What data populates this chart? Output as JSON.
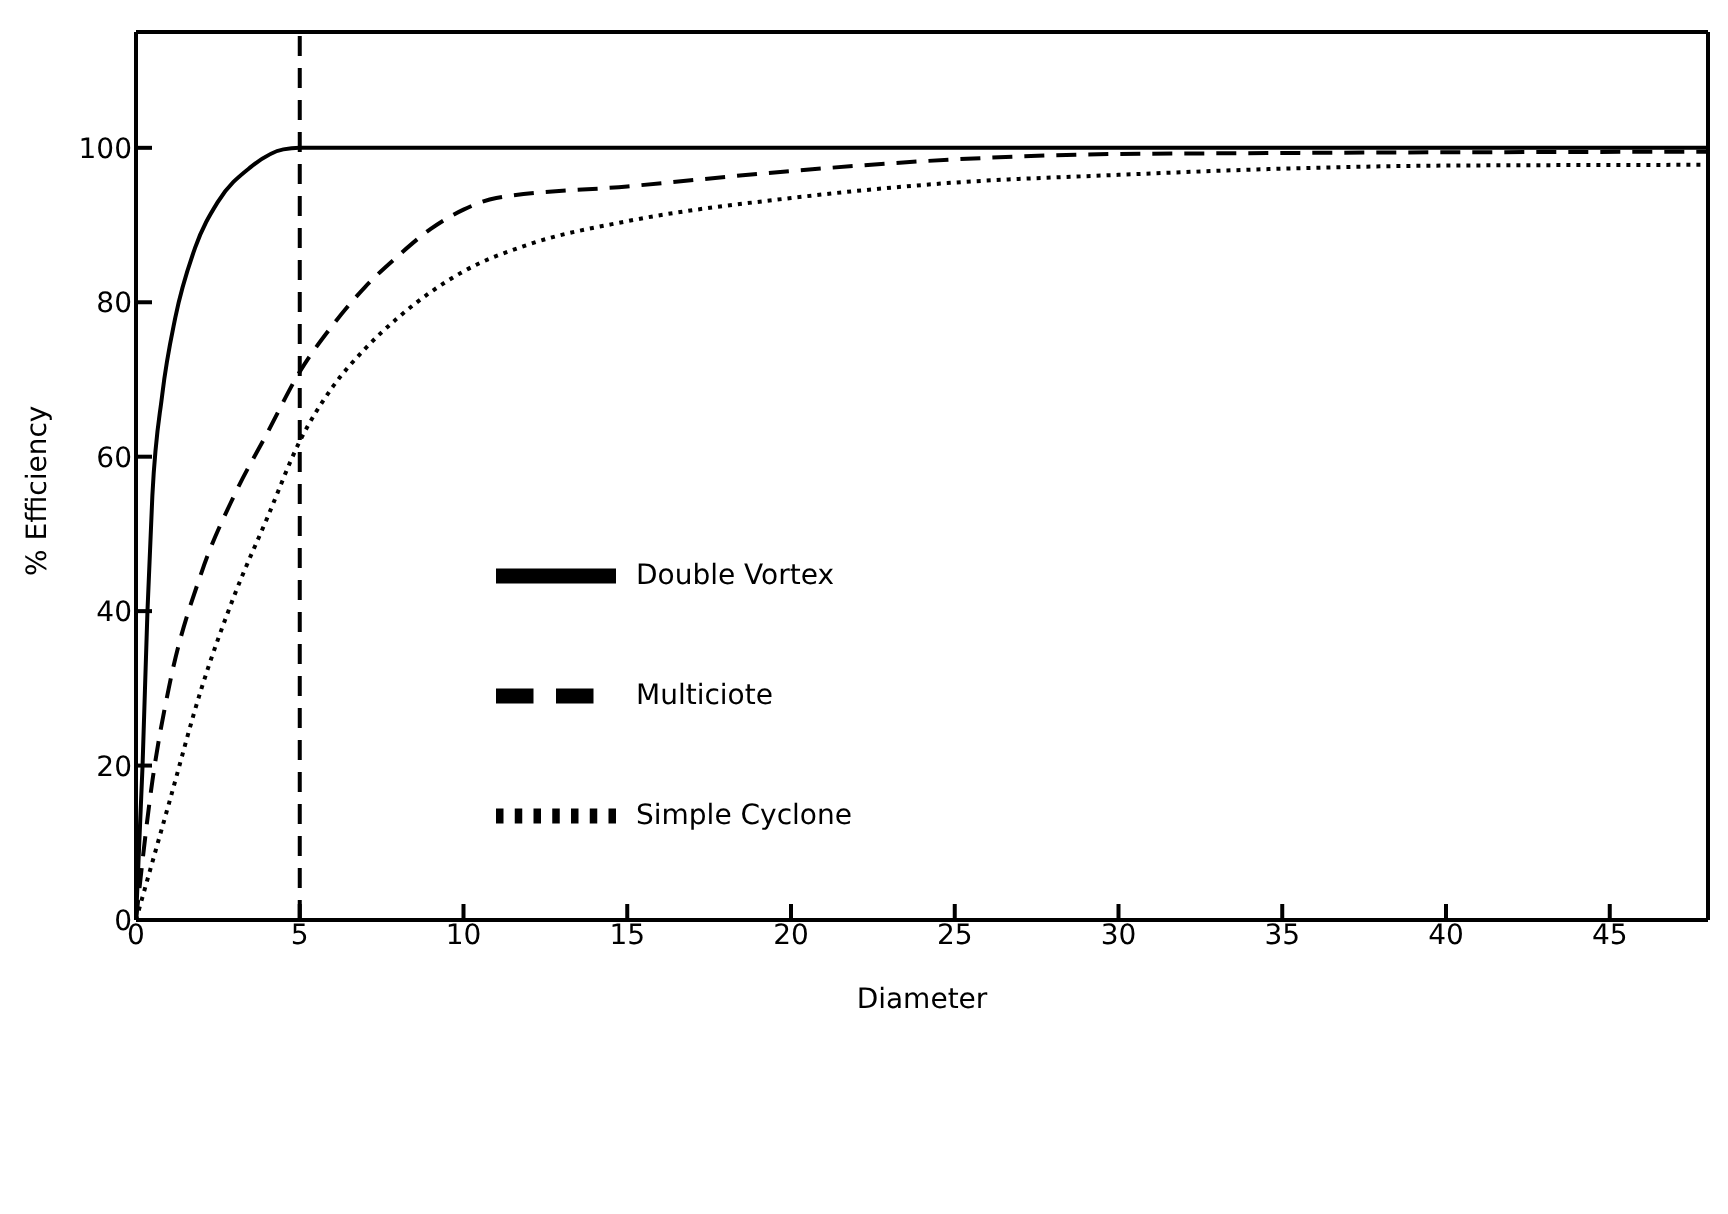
{
  "chart_data": {
    "type": "line",
    "xlabel": "Diameter",
    "ylabel": "% Efficiency",
    "xlim": [
      0,
      48
    ],
    "ylim": [
      0,
      115
    ],
    "xticks": [
      0,
      5,
      10,
      15,
      20,
      25,
      30,
      35,
      40,
      45
    ],
    "yticks": [
      0,
      20,
      40,
      60,
      80,
      100
    ],
    "grid": false,
    "legend": "center",
    "marker": "none",
    "series": [
      {
        "name": "Double Vortex",
        "color": "#000000",
        "line_style": "solid",
        "x": [
          0,
          0.2,
          0.35,
          0.5,
          0.8,
          1.2,
          1.8,
          2.5,
          3.5,
          4.5,
          5,
          48
        ],
        "values": [
          0,
          20,
          40,
          55,
          68,
          78,
          87,
          93,
          97.5,
          99.8,
          100,
          100
        ]
      },
      {
        "name": "Multiciote",
        "color": "#000000",
        "line_style": "dashed",
        "x": [
          0,
          0.5,
          1,
          2,
          3,
          4,
          5,
          6,
          7,
          8,
          9,
          10,
          11,
          15,
          20,
          25,
          30,
          48
        ],
        "values": [
          0,
          18,
          30,
          45,
          55,
          63,
          71,
          77,
          82,
          86,
          89.5,
          92,
          93.5,
          95,
          97,
          98.5,
          99.2,
          99.5
        ]
      },
      {
        "name": "Simple Cyclone",
        "color": "#000000",
        "line_style": "dotted",
        "x": [
          0,
          1,
          2,
          3,
          4,
          5,
          6,
          7,
          8,
          10,
          12,
          15,
          20,
          25,
          30,
          35,
          40,
          48
        ],
        "values": [
          0,
          15,
          30,
          42,
          52,
          62,
          69,
          74,
          78,
          84,
          87.5,
          90.5,
          93.5,
          95.5,
          96.5,
          97.3,
          97.7,
          97.8
        ]
      }
    ],
    "ref_lines": [
      {
        "axis": "x",
        "value": 5,
        "line_style": "dashed",
        "color": "#000000"
      }
    ]
  }
}
